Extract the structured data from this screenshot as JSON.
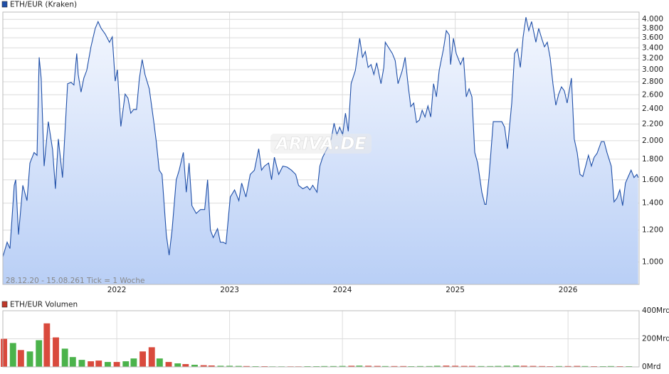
{
  "chart_data": [
    {
      "type": "line",
      "log_y": true,
      "grid": true,
      "period": "28.12.20 - 15.08.26",
      "tick_note": "1 Tick = 1 Woche",
      "watermark": "ARIVA.DE",
      "xlim": [
        2020.99,
        2026.63
      ],
      "xticks": [
        2022,
        2023,
        2024,
        2025,
        2026
      ],
      "ylim": [
        880,
        4170
      ],
      "yticks": [
        {
          "value": 1000,
          "label": "1.000"
        },
        {
          "value": 1200,
          "label": "1.200"
        },
        {
          "value": 1400,
          "label": "1.400"
        },
        {
          "value": 1600,
          "label": "1.600"
        },
        {
          "value": 1800,
          "label": "1.800"
        },
        {
          "value": 2000,
          "label": "2.000"
        },
        {
          "value": 2200,
          "label": "2.200"
        },
        {
          "value": 2400,
          "label": "2.400"
        },
        {
          "value": 2600,
          "label": "2.600"
        },
        {
          "value": 2800,
          "label": "2.800"
        },
        {
          "value": 3000,
          "label": "3.000"
        },
        {
          "value": 3200,
          "label": "3.200"
        },
        {
          "value": 3400,
          "label": "3.400"
        },
        {
          "value": 3600,
          "label": "3.600"
        },
        {
          "value": 3800,
          "label": "3.800"
        },
        {
          "value": 4000,
          "label": "4.000"
        }
      ],
      "x": [
        2020.99,
        2021.028,
        2021.053,
        2021.091,
        2021.104,
        2021.129,
        2021.167,
        2021.204,
        2021.23,
        2021.267,
        2021.293,
        2021.312,
        2021.33,
        2021.356,
        2021.393,
        2021.431,
        2021.456,
        2021.482,
        2021.519,
        2021.564,
        2021.595,
        2021.62,
        2021.645,
        2021.658,
        2021.683,
        2021.708,
        2021.734,
        2021.771,
        2021.809,
        2021.834,
        2021.861,
        2021.897,
        2021.935,
        2021.96,
        2021.986,
        2022.005,
        2022.036,
        2022.074,
        2022.099,
        2022.124,
        2022.149,
        2022.175,
        2022.2,
        2022.225,
        2022.25,
        2022.288,
        2022.326,
        2022.351,
        2022.376,
        2022.401,
        2022.439,
        2022.464,
        2022.49,
        2022.527,
        2022.553,
        2022.59,
        2022.616,
        2022.641,
        2022.666,
        2022.704,
        2022.742,
        2022.779,
        2022.805,
        2022.83,
        2022.855,
        2022.893,
        2022.918,
        2022.943,
        2022.968,
        2023.006,
        2023.044,
        2023.082,
        2023.107,
        2023.145,
        2023.183,
        2023.22,
        2023.258,
        2023.283,
        2023.309,
        2023.346,
        2023.372,
        2023.397,
        2023.435,
        2023.472,
        2023.51,
        2023.548,
        2023.586,
        2023.611,
        2023.649,
        2023.687,
        2023.712,
        2023.737,
        2023.775,
        2023.8,
        2023.825,
        2023.863,
        2023.901,
        2023.926,
        2023.951,
        2023.976,
        2024.002,
        2024.027,
        2024.052,
        2024.077,
        2024.115,
        2024.153,
        2024.178,
        2024.203,
        2024.228,
        2024.254,
        2024.279,
        2024.304,
        2024.342,
        2024.367,
        2024.38,
        2024.405,
        2024.443,
        2024.468,
        2024.493,
        2024.531,
        2024.556,
        2024.581,
        2024.606,
        2024.632,
        2024.657,
        2024.682,
        2024.707,
        2024.732,
        2024.758,
        2024.783,
        2024.808,
        2024.833,
        2024.858,
        2024.896,
        2024.921,
        2024.947,
        2024.959,
        2024.984,
        2025.009,
        2025.047,
        2025.073,
        2025.098,
        2025.123,
        2025.148,
        2025.173,
        2025.199,
        2025.236,
        2025.262,
        2025.274,
        2025.299,
        2025.337,
        2025.375,
        2025.413,
        2025.438,
        2025.463,
        2025.501,
        2025.526,
        2025.551,
        2025.577,
        2025.602,
        2025.627,
        2025.652,
        2025.677,
        2025.715,
        2025.74,
        2025.766,
        2025.791,
        2025.816,
        2025.841,
        2025.866,
        2025.892,
        2025.917,
        2025.942,
        2025.967,
        2025.992,
        2026.03,
        2026.055,
        2026.081,
        2026.106,
        2026.131,
        2026.156,
        2026.181,
        2026.207,
        2026.232,
        2026.257,
        2026.295,
        2026.32,
        2026.345,
        2026.383,
        2026.408,
        2026.433,
        2026.459,
        2026.484,
        2026.509,
        2026.534,
        2026.559,
        2026.585,
        2026.61,
        2026.622
      ],
      "series": [
        {
          "name": "ETH/EUR (Kraken)",
          "color": "#1f4fa8",
          "values": [
            1030,
            1120,
            1080,
            1550,
            1600,
            1170,
            1550,
            1420,
            1760,
            1870,
            1840,
            3220,
            2850,
            1730,
            2230,
            1900,
            1520,
            2020,
            1620,
            2770,
            2790,
            2750,
            3290,
            2920,
            2640,
            2860,
            2990,
            3420,
            3800,
            3950,
            3800,
            3680,
            3510,
            3620,
            2810,
            3000,
            2170,
            2610,
            2550,
            2340,
            2390,
            2390,
            2850,
            3180,
            2920,
            2690,
            2250,
            1980,
            1690,
            1650,
            1170,
            1040,
            1200,
            1600,
            1690,
            1870,
            1490,
            1760,
            1380,
            1320,
            1350,
            1350,
            1600,
            1200,
            1150,
            1210,
            1120,
            1120,
            1110,
            1450,
            1510,
            1420,
            1570,
            1450,
            1650,
            1690,
            1910,
            1690,
            1730,
            1760,
            1600,
            1820,
            1650,
            1730,
            1720,
            1690,
            1650,
            1550,
            1520,
            1540,
            1510,
            1550,
            1490,
            1730,
            1820,
            1910,
            2020,
            2210,
            2070,
            2160,
            2070,
            2340,
            2110,
            2770,
            2990,
            3590,
            3220,
            3330,
            3040,
            3090,
            2920,
            3120,
            2770,
            3040,
            3510,
            3420,
            3290,
            3160,
            2770,
            2990,
            3220,
            2770,
            2430,
            2480,
            2220,
            2250,
            2380,
            2290,
            2440,
            2290,
            2770,
            2570,
            2990,
            3380,
            3750,
            3660,
            3090,
            3590,
            3290,
            3090,
            3220,
            2570,
            2690,
            2570,
            1870,
            1760,
            1490,
            1390,
            1390,
            1620,
            2230,
            2230,
            2230,
            2160,
            1910,
            2480,
            3290,
            3380,
            3040,
            3620,
            4050,
            3750,
            3950,
            3510,
            3800,
            3590,
            3420,
            3510,
            3220,
            2770,
            2450,
            2610,
            2720,
            2660,
            2480,
            2860,
            2020,
            1870,
            1650,
            1630,
            1730,
            1840,
            1730,
            1820,
            1860,
            1990,
            1990,
            1870,
            1730,
            1410,
            1440,
            1510,
            1380,
            1570,
            1630,
            1690,
            1620,
            1650,
            1620
          ]
        }
      ]
    },
    {
      "type": "bar",
      "xlim": [
        2020.99,
        2026.63
      ],
      "ylim": [
        0,
        400
      ],
      "yticks": [
        {
          "value": 0,
          "label": "0Mrd"
        },
        {
          "value": 200,
          "label": "200Mrd"
        },
        {
          "value": 400,
          "label": "400Mrd"
        }
      ],
      "x": [
        2021.0,
        2021.08,
        2021.15,
        2021.23,
        2021.31,
        2021.38,
        2021.46,
        2021.54,
        2021.61,
        2021.69,
        2021.77,
        2021.84,
        2021.92,
        2022.0,
        2022.08,
        2022.15,
        2022.23,
        2022.31,
        2022.38,
        2022.46,
        2022.54,
        2022.61,
        2022.69,
        2022.77,
        2022.84,
        2022.92,
        2023.0,
        2023.08,
        2023.15,
        2023.23,
        2023.31,
        2023.38,
        2023.46,
        2023.54,
        2023.61,
        2023.69,
        2023.77,
        2023.84,
        2023.92,
        2024.0,
        2024.08,
        2024.15,
        2024.23,
        2024.31,
        2024.38,
        2024.46,
        2024.54,
        2024.61,
        2024.69,
        2024.77,
        2024.84,
        2024.92,
        2025.0,
        2025.08,
        2025.15,
        2025.23,
        2025.31,
        2025.38,
        2025.46,
        2025.54,
        2025.61,
        2025.69,
        2025.77,
        2025.84,
        2025.92,
        2026.0,
        2026.08,
        2026.15,
        2026.23,
        2026.31,
        2026.38,
        2026.46,
        2026.54
      ],
      "series": [
        {
          "name": "ETH/EUR Volumen",
          "color": "#c0392b",
          "values": [
            200,
            170,
            120,
            110,
            190,
            310,
            210,
            130,
            70,
            50,
            40,
            45,
            35,
            35,
            40,
            60,
            110,
            140,
            60,
            35,
            25,
            20,
            15,
            12,
            10,
            8,
            8,
            7,
            6,
            5,
            5,
            4,
            4,
            4,
            4,
            5,
            5,
            6,
            6,
            7,
            8,
            9,
            8,
            7,
            6,
            6,
            6,
            5,
            6,
            6,
            8,
            9,
            8,
            7,
            7,
            6,
            6,
            7,
            8,
            9,
            8,
            7,
            6,
            5,
            6,
            6,
            7,
            6,
            5,
            5,
            6,
            5,
            5
          ],
          "colors": [
            "#d94a3d",
            "#4bb34b",
            "#d94a3d",
            "#4bb34b",
            "#4bb34b",
            "#d94a3d",
            "#d94a3d",
            "#4bb34b",
            "#4bb34b",
            "#4bb34b",
            "#d94a3d",
            "#d94a3d",
            "#4bb34b",
            "#d94a3d",
            "#4bb34b",
            "#4bb34b",
            "#d94a3d",
            "#d94a3d",
            "#4bb34b",
            "#d94a3d",
            "#4bb34b",
            "#d94a3d",
            "#4bb34b",
            "#d94a3d",
            "#d94a3d",
            "#4bb34b",
            "#4bb34b",
            "#4bb34b",
            "#d94a3d",
            "#4bb34b",
            "#d94a3d",
            "#4bb34b",
            "#4bb34b",
            "#d94a3d",
            "#d94a3d",
            "#4bb34b",
            "#4bb34b",
            "#4bb34b",
            "#4bb34b",
            "#4bb34b",
            "#d94a3d",
            "#4bb34b",
            "#d94a3d",
            "#d94a3d",
            "#4bb34b",
            "#d94a3d",
            "#d94a3d",
            "#4bb34b",
            "#4bb34b",
            "#4bb34b",
            "#4bb34b",
            "#d94a3d",
            "#d94a3d",
            "#d94a3d",
            "#d94a3d",
            "#4bb34b",
            "#4bb34b",
            "#4bb34b",
            "#4bb34b",
            "#4bb34b",
            "#d94a3d",
            "#d94a3d",
            "#d94a3d",
            "#d94a3d",
            "#4bb34b",
            "#d94a3d",
            "#d94a3d",
            "#4bb34b",
            "#d94a3d",
            "#4bb34b",
            "#4bb34b",
            "#d94a3d",
            "#4bb34b"
          ]
        }
      ]
    }
  ]
}
